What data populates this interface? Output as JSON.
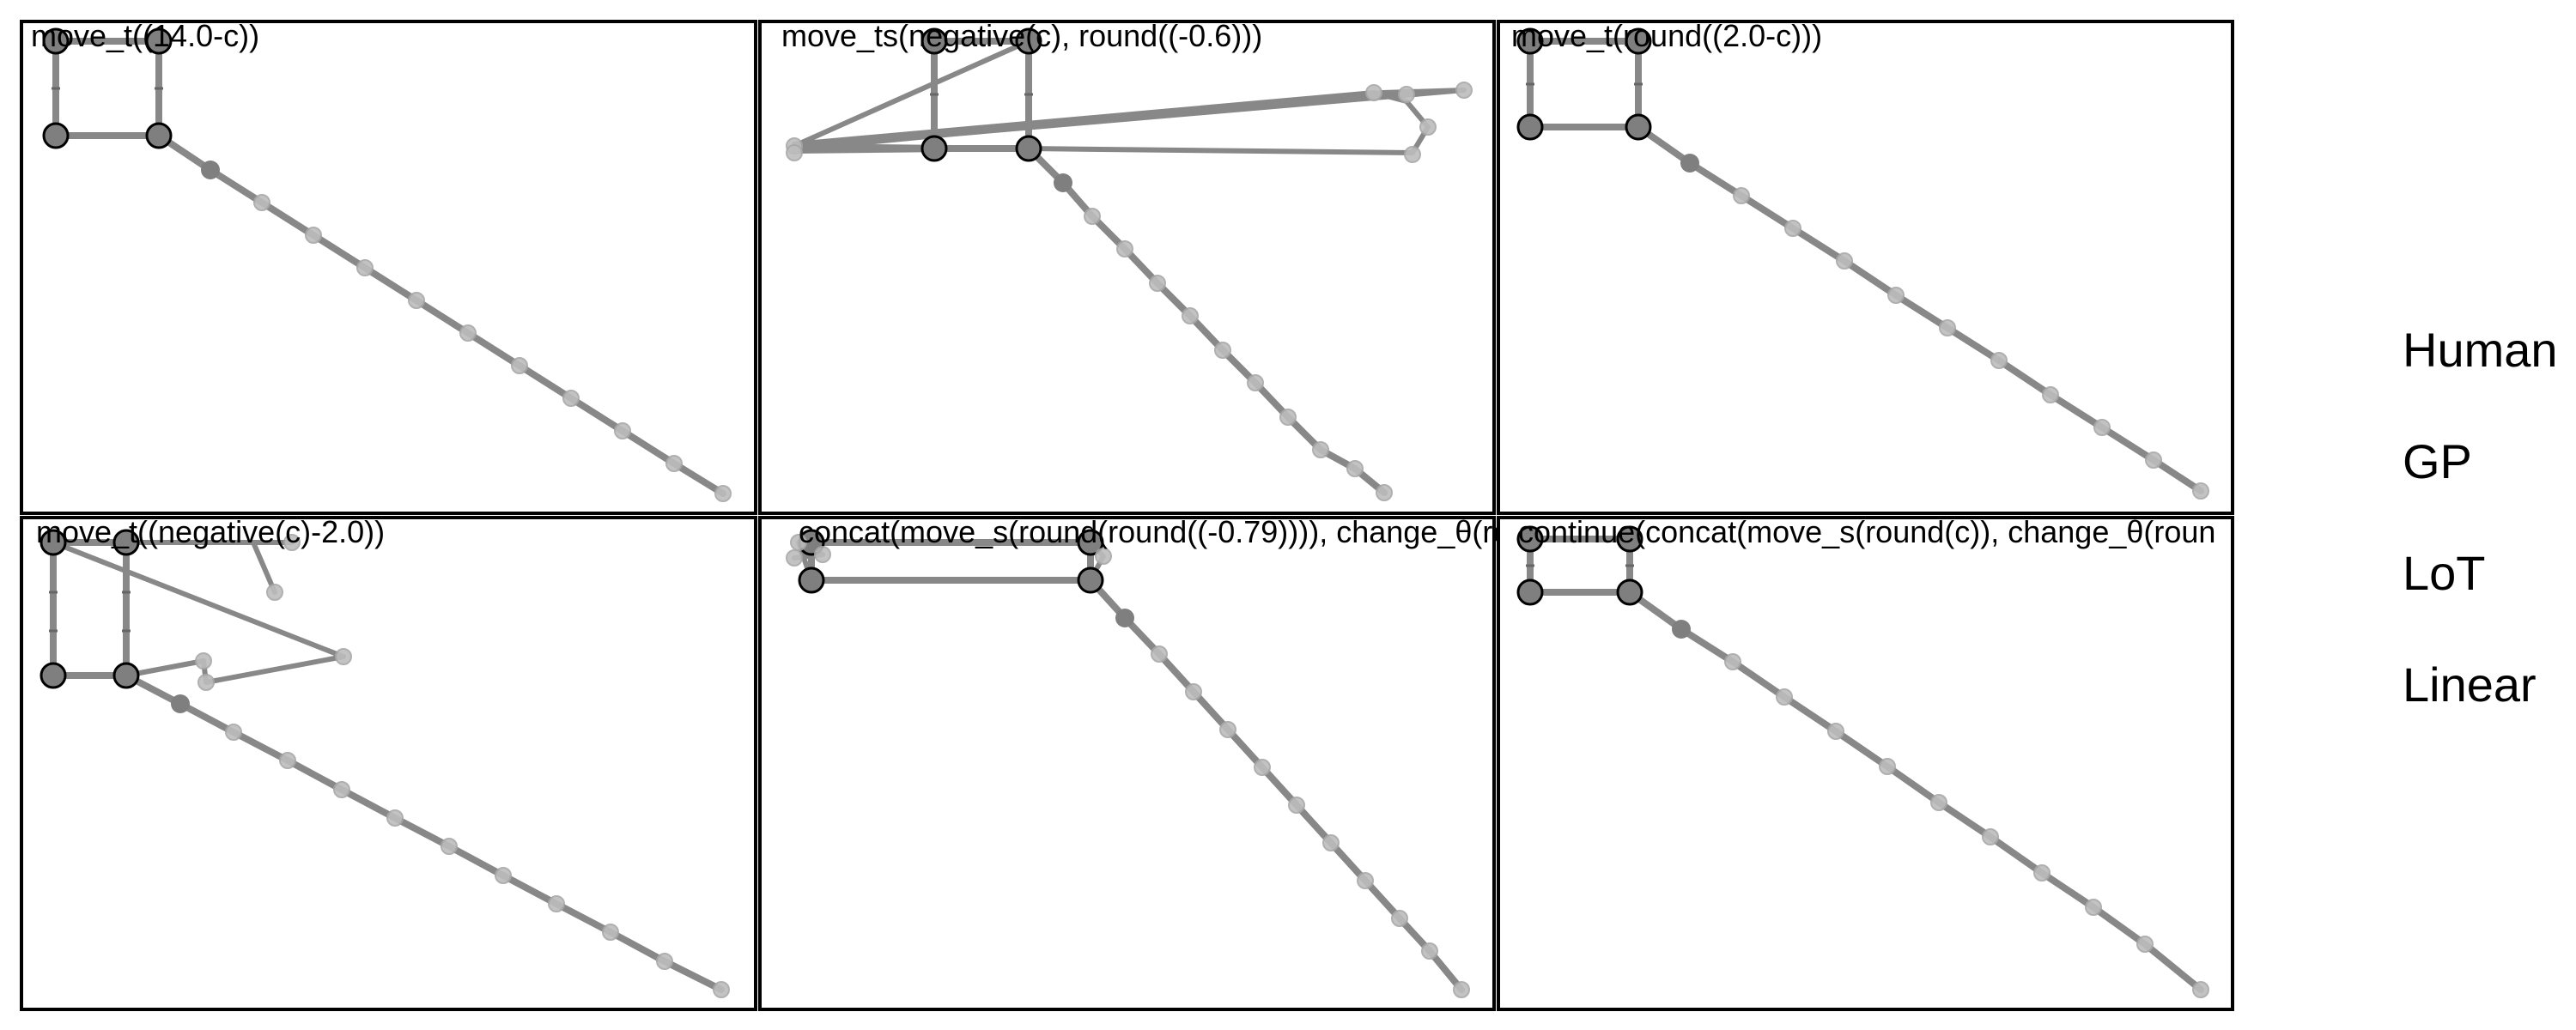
{
  "panels": [
    {
      "label": "move_t((14.0-c))"
    },
    {
      "label": "move_ts(negative(c), round((-0.6)))"
    },
    {
      "label": "move_t(round((2.0-c)))"
    },
    {
      "label": "move_t((negative(c)-2.0))"
    },
    {
      "label": "concat(move_s(round(round((-0.79)))), change_θ(ro"
    },
    {
      "label": "continue(concat(move_s(round(c)), change_θ(roun"
    }
  ],
  "legend": {
    "items": [
      "Human",
      "GP",
      "LoT",
      "Linear"
    ]
  },
  "colors": {
    "trace": "#888888",
    "anchor_fill": "#7f7f7f",
    "ghost_fill": "#bdbdbd",
    "frame": "#000000"
  }
}
